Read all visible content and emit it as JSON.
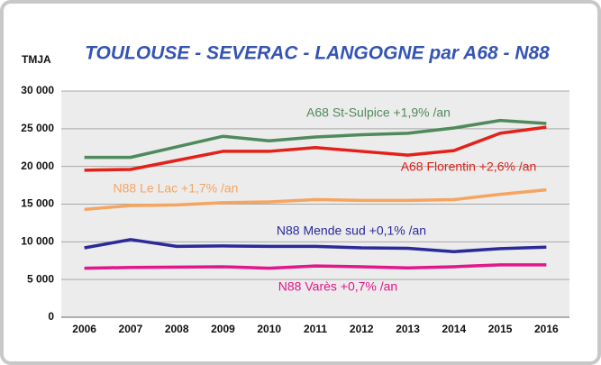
{
  "chart_data": {
    "type": "line",
    "title": "TOULOUSE - SEVERAC - LANGOGNE par A68 - N88",
    "y_label": "TMJA",
    "categories": [
      "2006",
      "2007",
      "2008",
      "2009",
      "2010",
      "2011",
      "2012",
      "2013",
      "2014",
      "2015",
      "2016"
    ],
    "series": [
      {
        "name": "A68 St-Sulpice +1,9% /an",
        "color": "#4f8a5b",
        "values": [
          21200,
          21200,
          22600,
          24000,
          23400,
          23900,
          24200,
          24400,
          25100,
          26100,
          25700
        ]
      },
      {
        "name": "A68 Florentin +2,6% /an",
        "color": "#e32119",
        "values": [
          19500,
          19600,
          20800,
          22000,
          22000,
          22500,
          22000,
          21500,
          22100,
          24400,
          25200
        ]
      },
      {
        "name": "N88 Le Lac +1,7% /an",
        "color": "#f5a560",
        "values": [
          14300,
          14800,
          14900,
          15200,
          15300,
          15600,
          15500,
          15500,
          15600,
          16300,
          16900
        ]
      },
      {
        "name": "N88 Mende sud +0,1% /an",
        "color": "#2b2a9a",
        "values": [
          9200,
          10300,
          9400,
          9450,
          9400,
          9400,
          9200,
          9150,
          8700,
          9100,
          9300
        ]
      },
      {
        "name": "N88 Varès +0,7% /an",
        "color": "#e3168c",
        "values": [
          6500,
          6600,
          6650,
          6700,
          6500,
          6800,
          6700,
          6550,
          6700,
          6950,
          6950
        ]
      }
    ],
    "ylim": [
      0,
      30000
    ],
    "yticks": [
      {
        "value": 0,
        "label": "0"
      },
      {
        "value": 5000,
        "label": "5 000"
      },
      {
        "value": 10000,
        "label": "10 000"
      },
      {
        "value": 15000,
        "label": "15 000"
      },
      {
        "value": 20000,
        "label": "20 000"
      },
      {
        "value": 25000,
        "label": "25 000"
      },
      {
        "value": 30000,
        "label": "30 000"
      }
    ],
    "grid": true
  }
}
